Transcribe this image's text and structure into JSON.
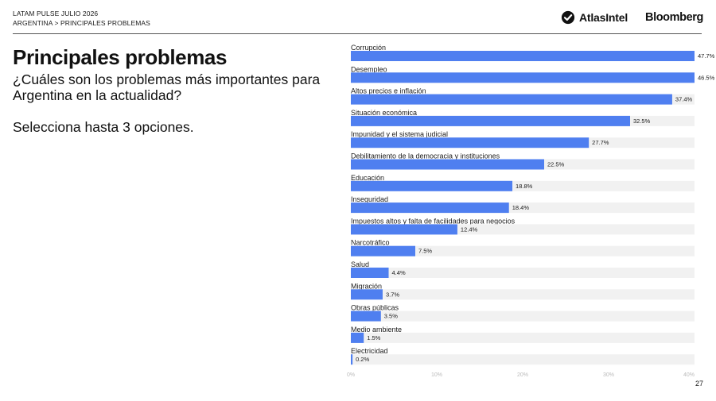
{
  "header": {
    "survey": "LATAM PULSE JULIO 2026",
    "breadcrumb": "ARGENTINA > PRINCIPALES PROBLEMAS",
    "logos": {
      "atlas": "AtlasIntel",
      "atlas_icon": "atlas-check-icon",
      "bloomberg": "Bloomberg"
    }
  },
  "main": {
    "title": "Principales problemas",
    "question": "¿Cuáles son los problemas más importantes para Argentina en la actualidad?",
    "instruction": "Selecciona hasta 3 opciones."
  },
  "colors": {
    "bar": "#4f7ff0",
    "track": "#f1f1f1",
    "text": "#111111",
    "tick": "#bbbbbb"
  },
  "chart_data": {
    "type": "bar",
    "orientation": "horizontal",
    "categories": [
      "Corrupción",
      "Desempleo",
      "Altos precios e inflación",
      "Situación económica",
      "Impunidad y el sistema judicial",
      "Debilitamiento de la democracia y instituciones",
      "Educación",
      "Inseguridad",
      "Impuestos altos y falta de facilidades para negocios",
      "Narcotráfico",
      "Salud",
      "Migración",
      "Obras públicas",
      "Medio ambiente",
      "Electricidad"
    ],
    "values": [
      47.7,
      46.5,
      37.4,
      32.5,
      27.7,
      22.5,
      18.8,
      18.4,
      12.4,
      7.5,
      4.4,
      3.7,
      3.5,
      1.5,
      0.2
    ],
    "value_labels": [
      "47.7%",
      "46.5%",
      "37.4%",
      "32.5%",
      "27.7%",
      "22.5%",
      "18.8%",
      "18.4%",
      "12.4%",
      "7.5%",
      "4.4%",
      "3.7%",
      "3.5%",
      "1.5%",
      "0.2%"
    ],
    "xlim": [
      0,
      40
    ],
    "xticks": [
      0,
      10,
      20,
      30,
      40
    ],
    "xtick_labels": [
      "0%",
      "10%",
      "20%",
      "30%",
      "40%"
    ],
    "grid": false
  },
  "footer": {
    "page_number": "27"
  }
}
